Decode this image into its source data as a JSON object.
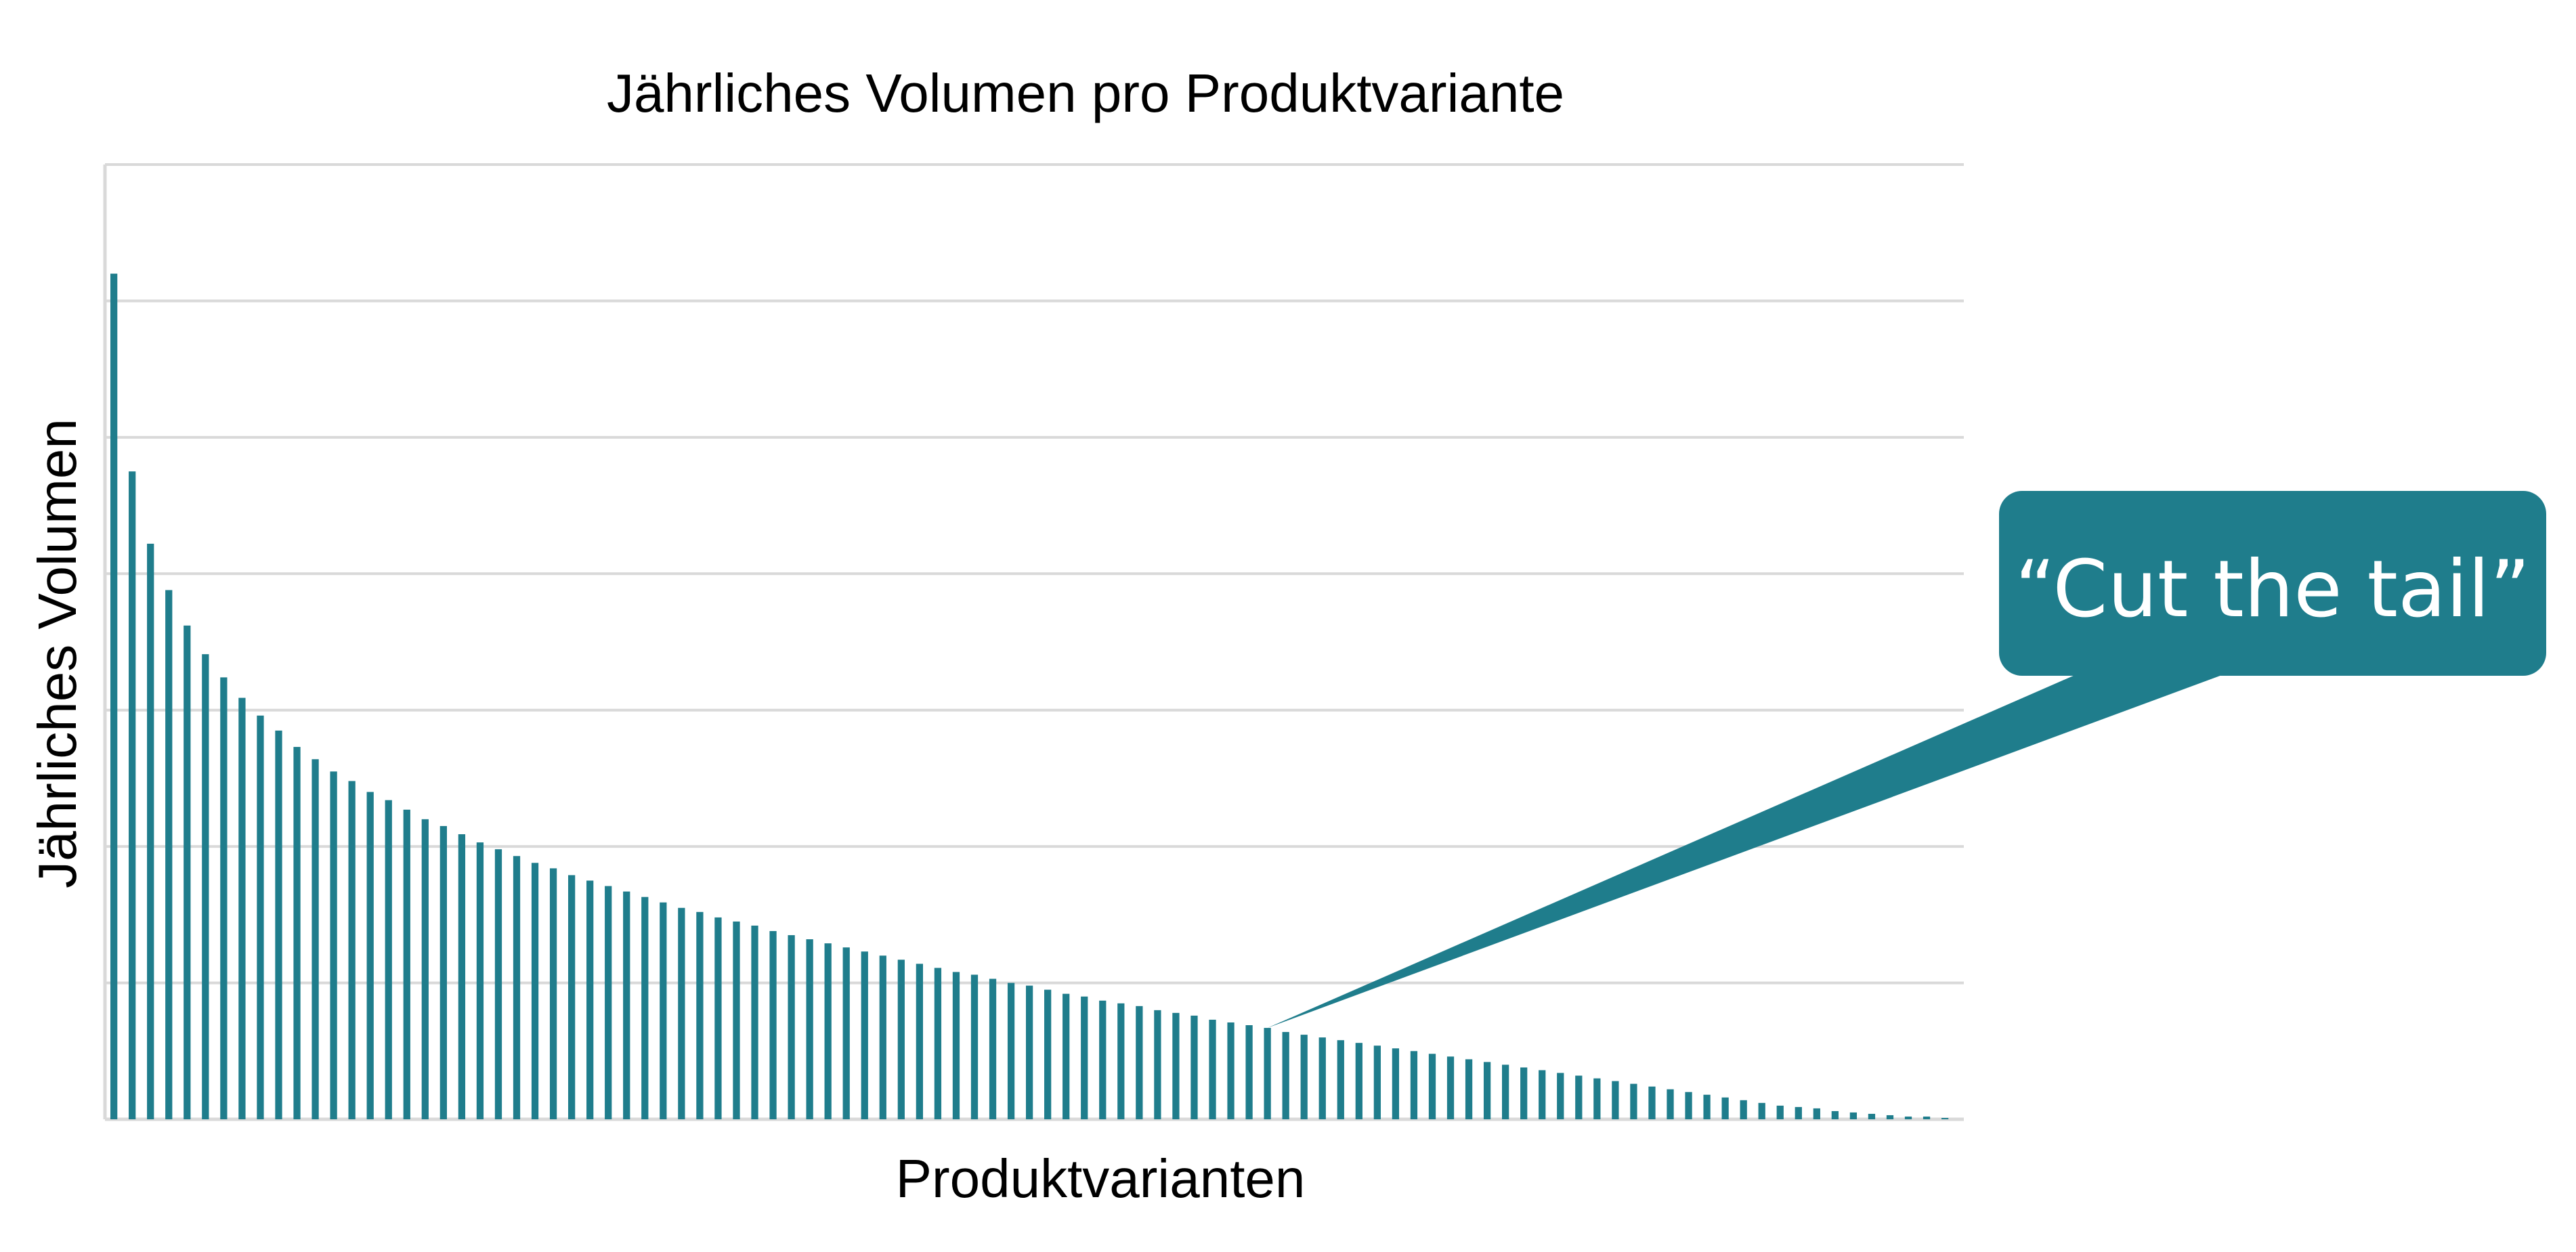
{
  "chart_data": {
    "type": "bar",
    "title": "Jährliches Volumen pro Produktvariante",
    "xlabel": "Produktvarianten",
    "ylabel": "Jährliches Volumen",
    "ylim": [
      0,
      7
    ],
    "grid": true,
    "legend": "none",
    "values": [
      6.2,
      4.75,
      4.22,
      3.88,
      3.62,
      3.41,
      3.24,
      3.09,
      2.96,
      2.85,
      2.73,
      2.64,
      2.55,
      2.48,
      2.4,
      2.34,
      2.27,
      2.2,
      2.15,
      2.09,
      2.03,
      1.98,
      1.93,
      1.88,
      1.84,
      1.79,
      1.75,
      1.71,
      1.67,
      1.63,
      1.59,
      1.55,
      1.52,
      1.48,
      1.45,
      1.42,
      1.38,
      1.35,
      1.32,
      1.29,
      1.26,
      1.23,
      1.2,
      1.17,
      1.14,
      1.11,
      1.08,
      1.06,
      1.03,
      1.0,
      0.98,
      0.95,
      0.92,
      0.9,
      0.87,
      0.85,
      0.83,
      0.8,
      0.78,
      0.76,
      0.73,
      0.71,
      0.69,
      0.67,
      0.64,
      0.62,
      0.6,
      0.58,
      0.56,
      0.54,
      0.52,
      0.5,
      0.48,
      0.46,
      0.44,
      0.42,
      0.4,
      0.38,
      0.36,
      0.34,
      0.32,
      0.3,
      0.28,
      0.26,
      0.24,
      0.22,
      0.2,
      0.18,
      0.16,
      0.14,
      0.12,
      0.1,
      0.09,
      0.08,
      0.06,
      0.05,
      0.04,
      0.03,
      0.02,
      0.02,
      0.01
    ],
    "annotation": {
      "text": "“Cut the tail”",
      "target_index": 63
    }
  },
  "colors": {
    "bar": "#1f7d8c",
    "callout": "#1f7d8c",
    "grid": "#d9d9d9",
    "axis": "#d9d9d9",
    "text": "#000000"
  }
}
